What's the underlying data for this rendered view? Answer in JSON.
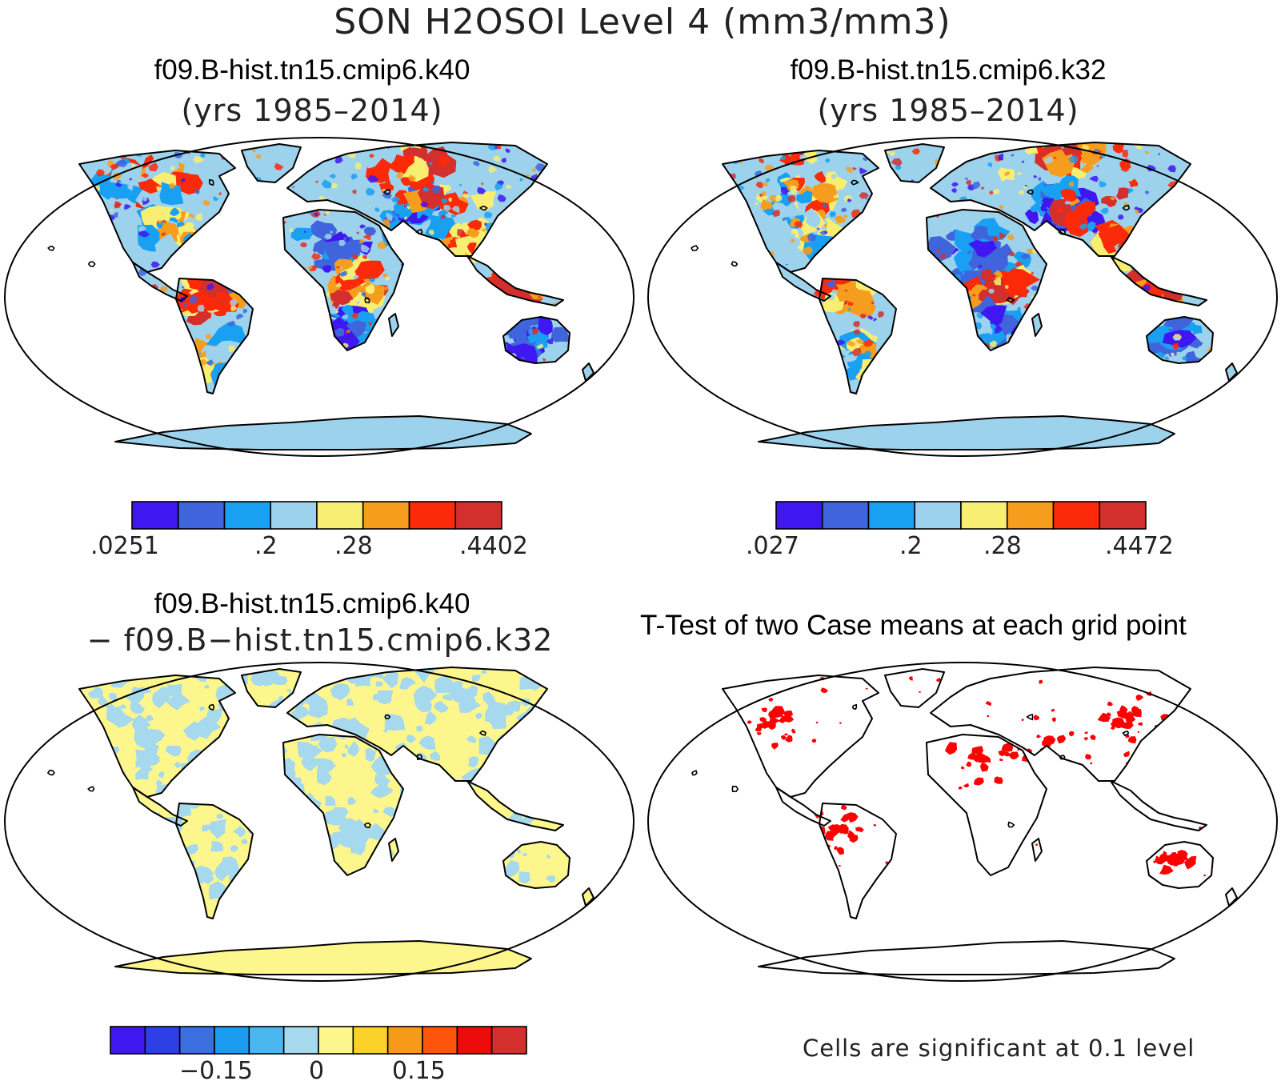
{
  "figure": {
    "title": "SON H2OSOI Level 4 (mm3/mm3)"
  },
  "panels": {
    "top_left": {
      "title": "f09.B-hist.tn15.cmip6.k40",
      "subtitle": "(yrs 1985–2014)",
      "field": "case1",
      "colorbar": {
        "colors": [
          "#3f17f0",
          "#3f64dc",
          "#1aa0f2",
          "#9dd2ed",
          "#f8ee72",
          "#f79d1e",
          "#fc2a08",
          "#d32f2d"
        ],
        "labels": [
          ".0251",
          ".2",
          ".28",
          ".4402"
        ]
      }
    },
    "top_right": {
      "title": "f09.B-hist.tn15.cmip6.k32",
      "subtitle": "(yrs 1985–2014)",
      "field": "case2",
      "colorbar": {
        "colors": [
          "#3f17f0",
          "#3f64dc",
          "#1aa0f2",
          "#9dd2ed",
          "#f8ee72",
          "#f79d1e",
          "#fc2a08",
          "#d32f2d"
        ],
        "labels": [
          ".027",
          ".2",
          ".28",
          ".4472"
        ]
      }
    },
    "bottom_left": {
      "title": "f09.B-hist.tn15.cmip6.k40",
      "subtitle": "− f09.B−hist.tn15.cmip6.k32",
      "field": "difference",
      "colorbar": {
        "colors": [
          "#3f17f0",
          "#2f3fe6",
          "#3b6ede",
          "#1a9bf0",
          "#4ab8ee",
          "#a6d8ee",
          "#fcf68c",
          "#fcd22a",
          "#f79a1a",
          "#fc5408",
          "#ec0c0c",
          "#d32f2d"
        ],
        "labels": [
          "−0.15",
          "0",
          "0.15"
        ]
      }
    },
    "bottom_right": {
      "title": "T-Test of two Case means at each grid point",
      "field": "significance",
      "highlight_color": "#ff0000",
      "footnote": "Cells are significant at 0.1 level"
    }
  }
}
